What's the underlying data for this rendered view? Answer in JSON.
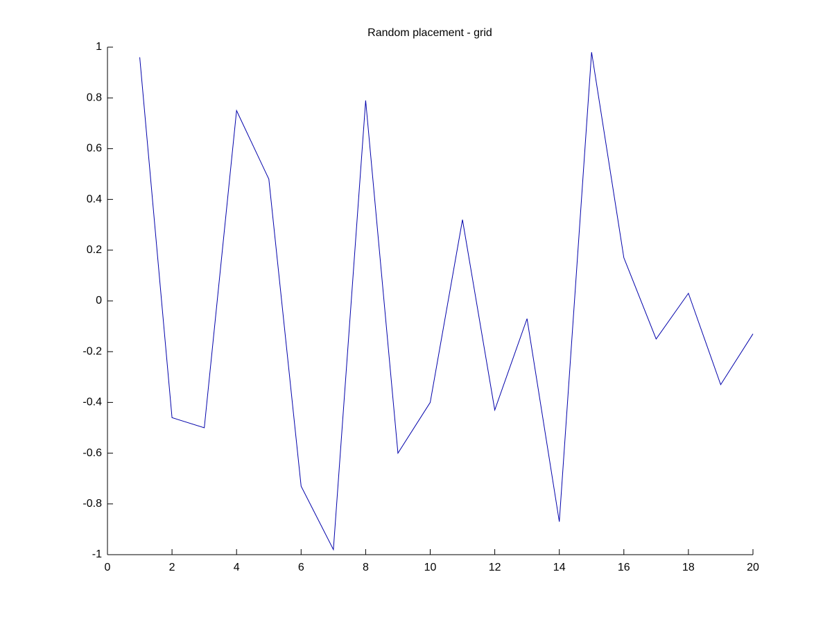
{
  "chart_data": {
    "type": "line",
    "title": "Random placement - grid",
    "x": [
      1,
      2,
      3,
      4,
      5,
      6,
      7,
      8,
      9,
      10,
      11,
      12,
      13,
      14,
      15,
      16,
      17,
      18,
      19,
      20
    ],
    "series": [
      {
        "color": "#0000aa",
        "values": [
          0.96,
          -0.46,
          -0.5,
          0.75,
          0.48,
          -0.73,
          -0.98,
          0.79,
          -0.6,
          -0.4,
          0.32,
          -0.43,
          -0.07,
          -0.87,
          0.98,
          0.17,
          -0.15,
          0.03,
          -0.33,
          -0.13
        ]
      }
    ],
    "xlim": [
      0,
      20
    ],
    "xticks": [
      0,
      2,
      4,
      6,
      8,
      10,
      12,
      14,
      16,
      18,
      20
    ],
    "ylim": [
      -1,
      1
    ],
    "yticks": [
      -1,
      -0.8,
      -0.6,
      -0.4,
      -0.2,
      0,
      0.2,
      0.4,
      0.6,
      0.8,
      1
    ],
    "grid": false
  }
}
